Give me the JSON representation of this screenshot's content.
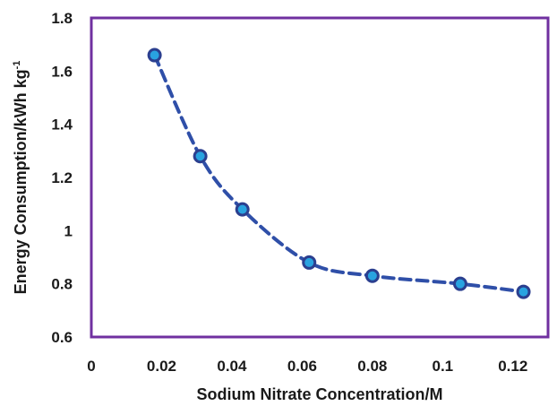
{
  "chart_data": {
    "type": "line",
    "title": "",
    "xlabel": "Sodium Nitrate Concentration/M",
    "ylabel": "Energy Consumption/kWh kg",
    "ylabel_superscript": "-1",
    "xlim": [
      0,
      0.13
    ],
    "ylim": [
      0.6,
      1.8
    ],
    "xticks": [
      "0",
      "0.02",
      "0.04",
      "0.06",
      "0.08",
      "0.1",
      "0.12"
    ],
    "yticks": [
      "0.6",
      "0.8",
      "1",
      "1.2",
      "1.4",
      "1.6",
      "1.8"
    ],
    "grid": false,
    "legend": false,
    "series": [
      {
        "x": [
          0.018,
          0.031,
          0.043,
          0.062,
          0.08,
          0.105,
          0.123
        ],
        "y": [
          1.66,
          1.28,
          1.08,
          0.88,
          0.83,
          0.8,
          0.77
        ]
      }
    ],
    "colors": {
      "frame": "#7030a0",
      "line": "#2f4fa8",
      "marker_fill": "#29a3e0",
      "marker_stroke": "#2b3f8f"
    }
  }
}
